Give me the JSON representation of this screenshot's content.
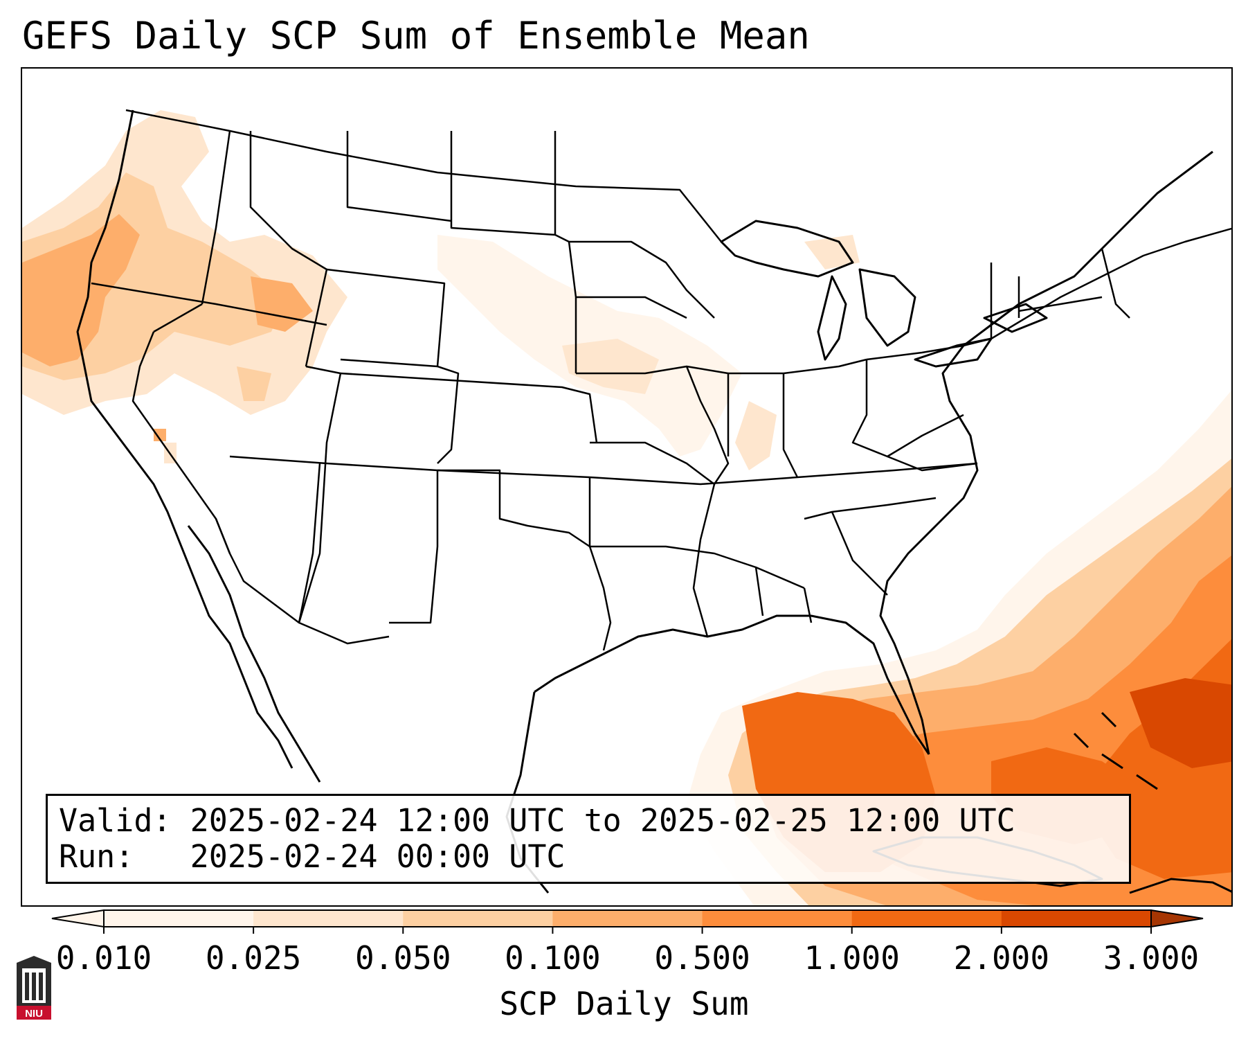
{
  "title": "GEFS Daily SCP Sum of Ensemble Mean",
  "info": {
    "valid_label": "Valid:",
    "valid_value": "2025-02-24 12:00 UTC to 2025-02-25 12:00 UTC",
    "run_label": "Run:",
    "run_value": "2025-02-24 00:00 UTC"
  },
  "colorbar": {
    "label": "SCP Daily Sum",
    "ticks": [
      "0.010",
      "0.025",
      "0.050",
      "0.100",
      "0.500",
      "1.000",
      "2.000",
      "3.000"
    ],
    "colors": [
      "#fff5eb",
      "#fee6ce",
      "#fdd0a2",
      "#fdae6b",
      "#fd8d3c",
      "#f16913",
      "#d94801",
      "#a63603"
    ],
    "extend": "both"
  },
  "logo": {
    "text": "NIU"
  },
  "map": {
    "region": "CONUS",
    "field": "SCP daily sum"
  }
}
